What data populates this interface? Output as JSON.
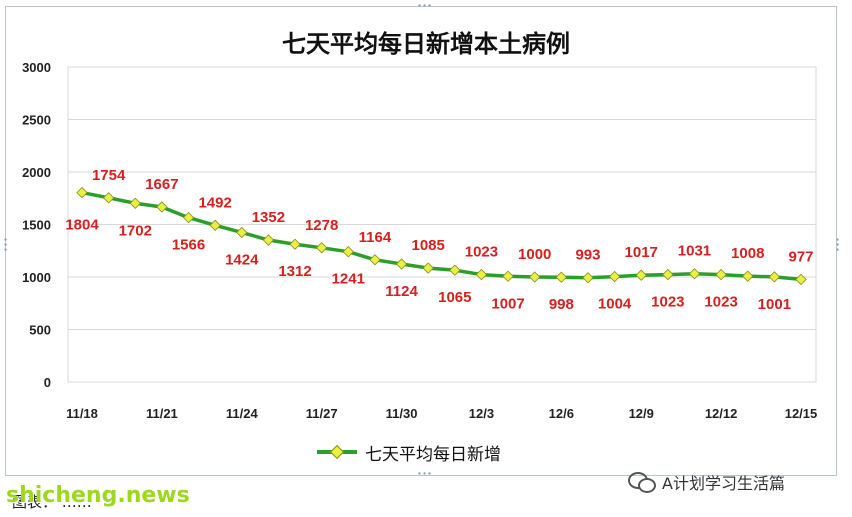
{
  "chart_data": {
    "type": "line",
    "title": "七天平均每日新增本土病例",
    "x": [
      "11/18",
      "11/19",
      "11/20",
      "11/21",
      "11/22",
      "11/23",
      "11/24",
      "11/25",
      "11/26",
      "11/27",
      "11/28",
      "11/29",
      "11/30",
      "12/1",
      "12/2",
      "12/3",
      "12/4",
      "12/5",
      "12/6",
      "12/7",
      "12/8",
      "12/9",
      "12/10",
      "12/11",
      "12/12",
      "12/13",
      "12/14",
      "12/15"
    ],
    "x_tick_labels": [
      "11/18",
      "11/21",
      "11/24",
      "11/27",
      "11/30",
      "12/3",
      "12/6",
      "12/9",
      "12/12",
      "12/15"
    ],
    "series": [
      {
        "name": "七天平均每日新增",
        "values": [
          1804,
          1754,
          1702,
          1667,
          1566,
          1492,
          1424,
          1352,
          1312,
          1278,
          1241,
          1164,
          1124,
          1085,
          1065,
          1023,
          1007,
          1000,
          998,
          993,
          1004,
          1017,
          1023,
          1031,
          1023,
          1008,
          1001,
          977
        ],
        "color": "#2aa02a",
        "marker_color": "#e8f040"
      }
    ],
    "ylim": [
      0,
      3000
    ],
    "y_ticks": [
      0,
      500,
      1000,
      1500,
      2000,
      2500,
      3000
    ],
    "xlabel": "",
    "ylabel": "",
    "grid": true,
    "legend_position": "bottom",
    "data_label_color": "#d62020"
  },
  "footer": {
    "source": "图表：  ……"
  },
  "wechat": {
    "name": "A计划学习生活篇",
    "icon": "wechat-icon"
  },
  "watermark": "shicheng.news"
}
